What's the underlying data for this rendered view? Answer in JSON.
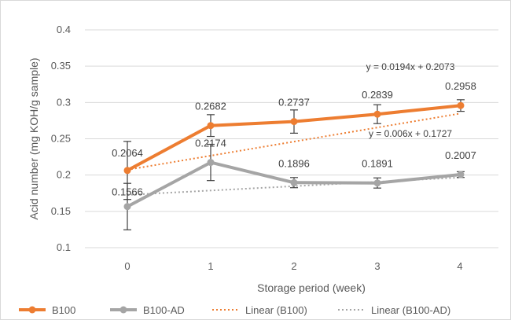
{
  "chart_data": {
    "type": "line",
    "xlabel": "Storage period (week)",
    "ylabel": "Acid number (mg KOH/g sample)",
    "categories": [
      "0",
      "1",
      "2",
      "3",
      "4"
    ],
    "x": [
      0,
      1,
      2,
      3,
      4
    ],
    "ylim": [
      0.1,
      0.4
    ],
    "yticks": [
      "0.1",
      "0.15",
      "0.2",
      "0.25",
      "0.3",
      "0.35",
      "0.4"
    ],
    "grid": true,
    "legend_position": "bottom",
    "series": [
      {
        "name": "B100",
        "color": "#ED7D31",
        "values": [
          0.2064,
          0.2682,
          0.2737,
          0.2839,
          0.2958
        ],
        "labels": [
          "0.2064",
          "0.2682",
          "0.2737",
          "0.2839",
          "0.2958"
        ],
        "error": [
          0.04,
          0.015,
          0.016,
          0.013,
          0.008
        ]
      },
      {
        "name": "B100-AD",
        "color": "#A5A5A5",
        "values": [
          0.1566,
          0.2174,
          0.1896,
          0.1891,
          0.2007
        ],
        "labels": [
          "0.1566",
          "0.2174",
          "0.1896",
          "0.1891",
          "0.2007"
        ],
        "error": [
          0.032,
          0.025,
          0.007,
          0.007,
          0.004
        ]
      }
    ],
    "trendlines": [
      {
        "name": "Linear (B100)",
        "color": "#ED7D31",
        "slope": 0.0194,
        "intercept": 0.2073,
        "equation": "y = 0.0194x + 0.2073"
      },
      {
        "name": "Linear (B100-AD)",
        "color": "#A5A5A5",
        "slope": 0.006,
        "intercept": 0.1727,
        "equation": "y = 0.006x + 0.1727"
      }
    ]
  }
}
